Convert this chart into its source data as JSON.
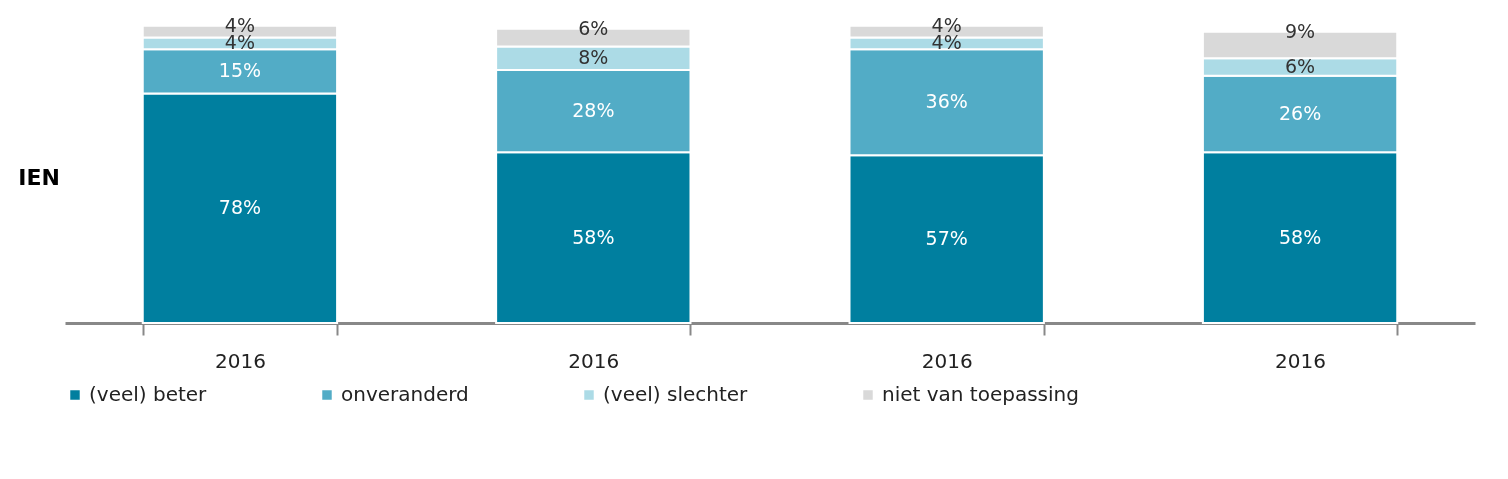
{
  "chart_data": {
    "type": "bar",
    "stacked": true,
    "legend": "bottom",
    "grid": false,
    "categories": [
      "2016",
      "2016",
      "2016",
      "2016"
    ],
    "annotations": [
      "IEN"
    ],
    "series": [
      {
        "name": "(veel) beter",
        "color": "#007f9f",
        "values": [
          78,
          58,
          57,
          58
        ],
        "value_labels": [
          "78%",
          "58%",
          "57%",
          "58%"
        ]
      },
      {
        "name": "onveranderd",
        "color": "#52acc6",
        "values": [
          15,
          28,
          36,
          26
        ],
        "value_labels": [
          "15%",
          "28%",
          "36%",
          "26%"
        ]
      },
      {
        "name": "(veel) slechter",
        "color": "#acdbe6",
        "values": [
          4,
          8,
          4,
          6
        ],
        "value_labels": [
          "4%",
          "8%",
          "4%",
          "6%"
        ]
      },
      {
        "name": "niet van toepassing",
        "color": "#d9d9d9",
        "values": [
          4,
          6,
          4,
          9
        ],
        "value_labels": [
          "4%",
          "6%",
          "4%",
          "9%"
        ]
      }
    ]
  }
}
